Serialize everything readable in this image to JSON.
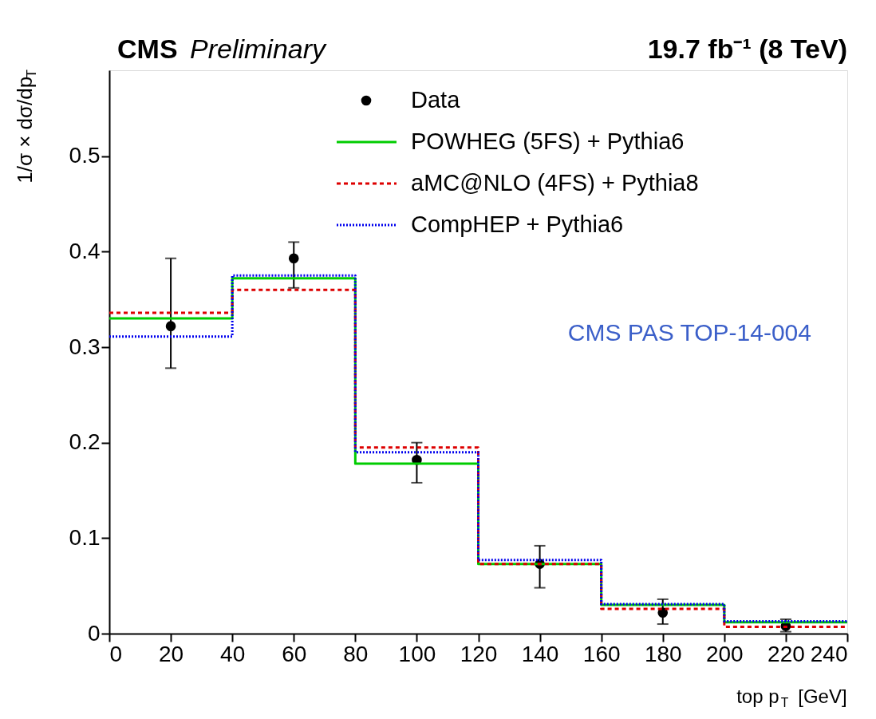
{
  "chart_data": {
    "type": "histogram",
    "title": "CMS Preliminary",
    "xlabel": "top p$_{T}$ [GeV]",
    "ylabel": "1/σ × dσ/dp$_{T}$",
    "annotations": [
      "19.7 fb⁻¹ (8 TeV)",
      "CMS PAS TOP-14-004"
    ],
    "bins": [
      0,
      40,
      80,
      120,
      160,
      200,
      240
    ],
    "series": [
      {
        "name": "Data",
        "type": "scatter",
        "color": "#000000",
        "marker": "circle",
        "x": [
          20,
          60,
          100,
          140,
          180,
          220
        ],
        "values": [
          0.322,
          0.393,
          0.182,
          0.073,
          0.022,
          0.008
        ],
        "errors": [
          [
            0.278,
            0.393
          ],
          [
            0.362,
            0.41
          ],
          [
            0.158,
            0.2
          ],
          [
            0.048,
            0.092
          ],
          [
            0.01,
            0.036
          ],
          [
            0.002,
            0.015
          ]
        ]
      },
      {
        "name": "POWHEG (5FS) + Pythia6",
        "type": "histogram",
        "color": "#00cc00",
        "line_style": "solid",
        "values": [
          0.33,
          0.372,
          0.178,
          0.073,
          0.03,
          0.012
        ]
      },
      {
        "name": "aMC@NLO (4FS) + Pythia8",
        "type": "histogram",
        "color": "#dd0000",
        "line_style": "dashed",
        "values": [
          0.336,
          0.36,
          0.195,
          0.073,
          0.026,
          0.007
        ]
      },
      {
        "name": "CompHEP + Pythia6",
        "type": "histogram",
        "color": "#0000ee",
        "line_style": "dotted",
        "values": [
          0.311,
          0.375,
          0.19,
          0.077,
          0.031,
          0.013
        ]
      }
    ],
    "xlim": [
      0,
      240
    ],
    "xticks": [
      0,
      20,
      40,
      60,
      80,
      100,
      120,
      140,
      160,
      180,
      200,
      220,
      240
    ],
    "ylim": [
      0,
      0.59
    ],
    "yticks": [
      0,
      0.1,
      0.2,
      0.3,
      0.4,
      0.5
    ],
    "grid": false,
    "legend": "top"
  }
}
